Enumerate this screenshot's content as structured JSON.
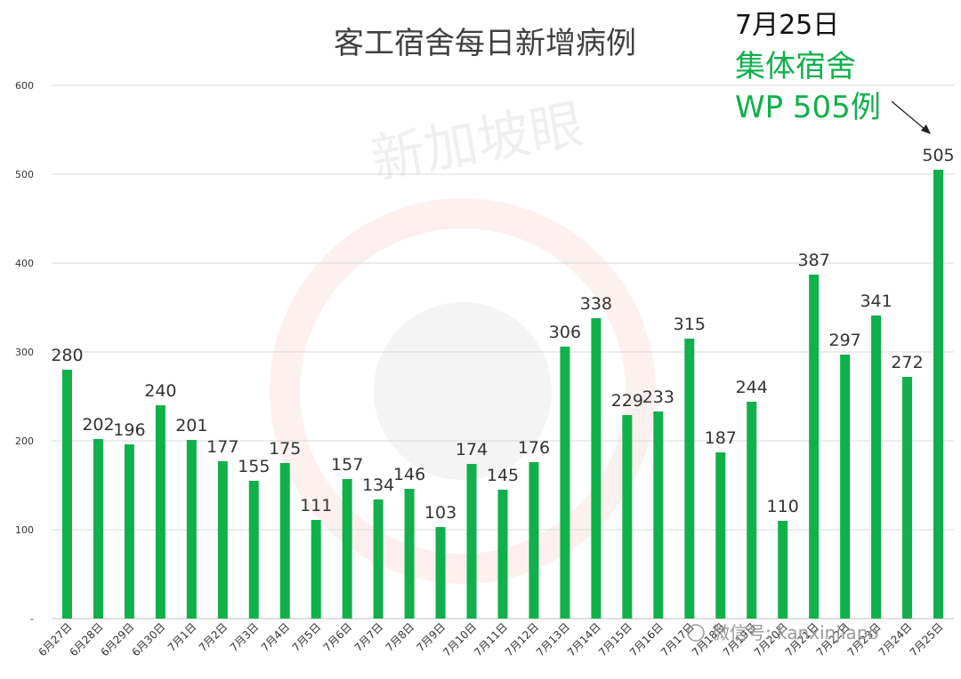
{
  "chart_data": {
    "type": "bar",
    "title": "客工宿舍每日新增病例",
    "xlabel": "",
    "ylabel": "",
    "ylim": [
      0,
      600
    ],
    "yticks": [
      0,
      100,
      200,
      300,
      400,
      500,
      600
    ],
    "grid": true,
    "legend": "none",
    "bar_color": "#10b04a",
    "categories": [
      "6月27日",
      "6月28日",
      "6月29日",
      "6月30日",
      "7月1日",
      "7月2日",
      "7月3日",
      "7月4日",
      "7月5日",
      "7月6日",
      "7月7日",
      "7月8日",
      "7月9日",
      "7月10日",
      "7月11日",
      "7月12日",
      "7月13日",
      "7月14日",
      "7月15日",
      "7月16日",
      "7月17日",
      "7月18日",
      "7月19日",
      "7月20日",
      "7月21日",
      "7月22日",
      "7月23日",
      "7月24日",
      "7月25日"
    ],
    "values": [
      280,
      202,
      196,
      240,
      201,
      177,
      155,
      175,
      111,
      157,
      134,
      146,
      103,
      174,
      145,
      176,
      306,
      338,
      229,
      233,
      315,
      187,
      244,
      110,
      387,
      297,
      341,
      272,
      505
    ]
  },
  "annotation": {
    "date": "7月25日",
    "line1": "集体宿舍",
    "line2": "WP 505例",
    "color": "#10b04a"
  },
  "watermark": {
    "brand": "新加坡眼",
    "wechat": "微信号: kanxinjiapo"
  }
}
